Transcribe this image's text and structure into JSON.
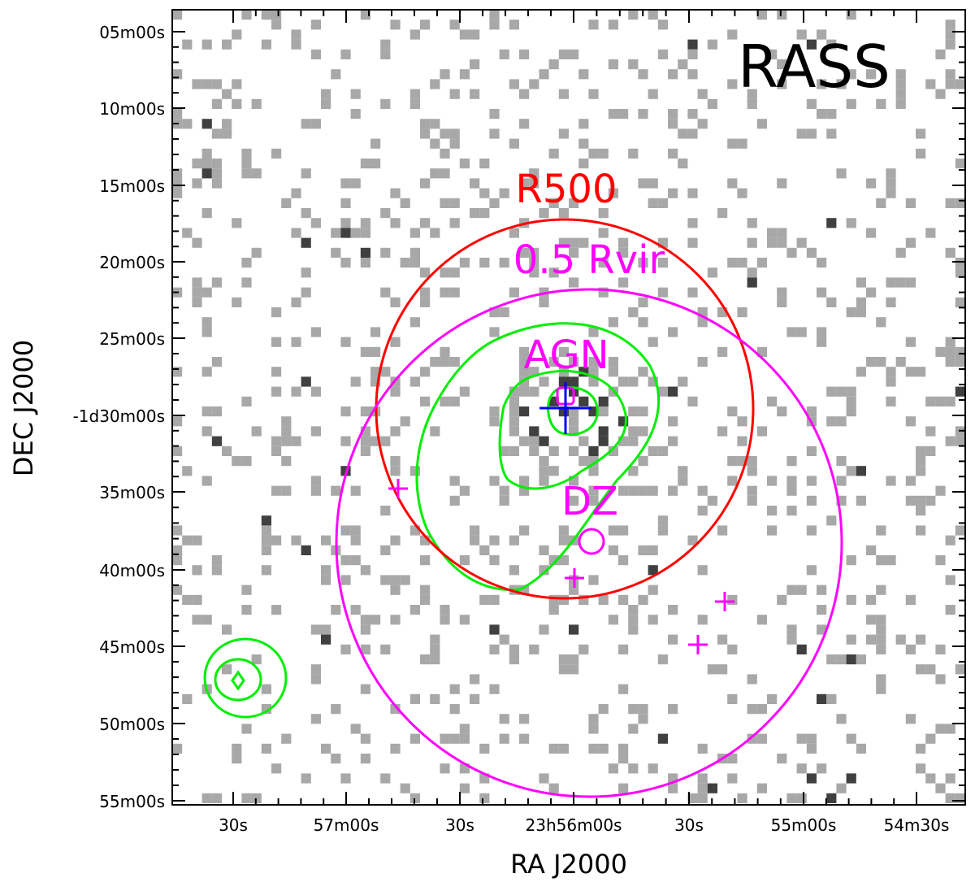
{
  "figure": {
    "panel_title": "RASS",
    "x_axis_title": "RA J2000",
    "y_axis_title": "DEC J2000",
    "x_ticks": [
      "30s",
      "57m00s",
      "30s",
      "23h56m00s",
      "30s",
      "55m00s",
      "54m30s"
    ],
    "y_ticks": [
      "05m00s",
      "10m00s",
      "15m00s",
      "20m00s",
      "25m00s",
      "-1d30m00s",
      "35m00s",
      "40m00s",
      "45m00s",
      "50m00s",
      "55m00s"
    ],
    "annotations": {
      "r500": "R500",
      "rvir": "0.5 Rvir",
      "agn": "AGN",
      "dz": "DZ"
    },
    "colors": {
      "r500": "#ff0000",
      "rvir": "#ff00ff",
      "contour": "#00ee00",
      "cross": "#0000ff",
      "pixel_light": "#a8a8a8",
      "pixel_dark": "#404040",
      "background": "#ffffff",
      "frame": "#000000"
    }
  }
}
